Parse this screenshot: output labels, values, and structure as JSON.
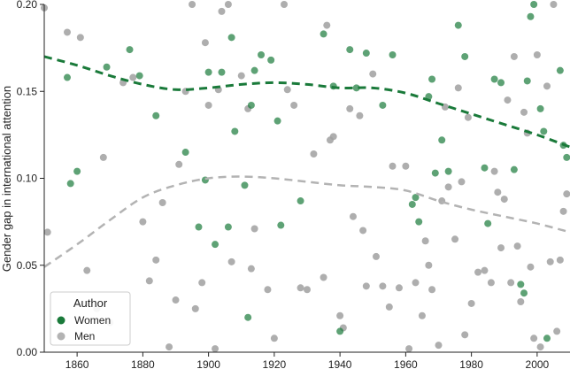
{
  "chart_data": {
    "type": "scatter",
    "title": "",
    "xlabel": "",
    "ylabel": "Gender gap in international attention",
    "xlim": [
      1850,
      2010
    ],
    "ylim": [
      0,
      0.2
    ],
    "xticks": [
      1860,
      1880,
      1900,
      1920,
      1940,
      1960,
      1980,
      2000
    ],
    "yticks": [
      0.0,
      0.05,
      0.1,
      0.15,
      0.2
    ],
    "ytick_labels": [
      "0.00",
      "0.05",
      "0.10",
      "0.15",
      "0.20"
    ],
    "grid": false,
    "legend": {
      "title": "Author",
      "placement": "bottom-left"
    },
    "series": [
      {
        "name": "Women",
        "color": "#1a7a3a",
        "points": [
          [
            1857,
            0.158
          ],
          [
            1858,
            0.097
          ],
          [
            1860,
            0.104
          ],
          [
            1869,
            0.164
          ],
          [
            1876,
            0.174
          ],
          [
            1879,
            0.159
          ],
          [
            1884,
            0.136
          ],
          [
            1893,
            0.115
          ],
          [
            1897,
            0.072
          ],
          [
            1899,
            0.099
          ],
          [
            1900,
            0.161
          ],
          [
            1902,
            0.062
          ],
          [
            1904,
            0.161
          ],
          [
            1906,
            0.072
          ],
          [
            1907,
            0.181
          ],
          [
            1908,
            0.127
          ],
          [
            1911,
            0.096
          ],
          [
            1912,
            0.02
          ],
          [
            1913,
            0.142
          ],
          [
            1914,
            0.162
          ],
          [
            1916,
            0.171
          ],
          [
            1919,
            0.168
          ],
          [
            1921,
            0.133
          ],
          [
            1922,
            0.073
          ],
          [
            1928,
            0.087
          ],
          [
            1935,
            0.183
          ],
          [
            1938,
            0.153
          ],
          [
            1940,
            0.012
          ],
          [
            1943,
            0.174
          ],
          [
            1945,
            0.152
          ],
          [
            1948,
            0.172
          ],
          [
            1953,
            0.142
          ],
          [
            1956,
            0.171
          ],
          [
            1962,
            0.085
          ],
          [
            1963,
            0.089
          ],
          [
            1964,
            0.075
          ],
          [
            1967,
            0.147
          ],
          [
            1968,
            0.157
          ],
          [
            1969,
            0.103
          ],
          [
            1971,
            0.122
          ],
          [
            1973,
            0.104
          ],
          [
            1976,
            0.188
          ],
          [
            1978,
            0.17
          ],
          [
            1984,
            0.106
          ],
          [
            1985,
            0.074
          ],
          [
            1987,
            0.157
          ],
          [
            1989,
            0.155
          ],
          [
            1993,
            0.105
          ],
          [
            1995,
            0.039
          ],
          [
            1996,
            0.034
          ],
          [
            1997,
            0.156
          ],
          [
            1998,
            0.193
          ],
          [
            1999,
            0.2
          ],
          [
            2001,
            0.14
          ],
          [
            2002,
            0.127
          ],
          [
            2003,
            0.008
          ],
          [
            2007,
            0.162
          ],
          [
            2008,
            0.119
          ],
          [
            2009,
            0.112
          ]
        ]
      },
      {
        "name": "Men",
        "color": "#a0a0a0",
        "points": [
          [
            1849,
            0.198
          ],
          [
            1851,
            0.069
          ],
          [
            1857,
            0.184
          ],
          [
            1861,
            0.181
          ],
          [
            1863,
            0.047
          ],
          [
            1866,
            0.025
          ],
          [
            1868,
            0.112
          ],
          [
            1870,
            0.017
          ],
          [
            1874,
            0.155
          ],
          [
            1877,
            0.158
          ],
          [
            1880,
            0.075
          ],
          [
            1882,
            0.041
          ],
          [
            1884,
            0.053
          ],
          [
            1886,
            0.086
          ],
          [
            1888,
            0.003
          ],
          [
            1890,
            0.03
          ],
          [
            1891,
            0.108
          ],
          [
            1893,
            0.15
          ],
          [
            1895,
            0.2
          ],
          [
            1896,
            0.025
          ],
          [
            1898,
            0.04
          ],
          [
            1899,
            0.178
          ],
          [
            1900,
            0.142
          ],
          [
            1902,
            0.002
          ],
          [
            1903,
            0.151
          ],
          [
            1904,
            0.196
          ],
          [
            1906,
            0.2
          ],
          [
            1907,
            0.052
          ],
          [
            1910,
            0.159
          ],
          [
            1912,
            0.14
          ],
          [
            1913,
            0.048
          ],
          [
            1914,
            0.071
          ],
          [
            1918,
            0.036
          ],
          [
            1920,
            0.008
          ],
          [
            1923,
            0.2
          ],
          [
            1924,
            0.151
          ],
          [
            1926,
            0.142
          ],
          [
            1928,
            0.037
          ],
          [
            1930,
            0.036
          ],
          [
            1932,
            0.114
          ],
          [
            1935,
            0.043
          ],
          [
            1936,
            0.188
          ],
          [
            1937,
            0.122
          ],
          [
            1938,
            0.124
          ],
          [
            1940,
            0.021
          ],
          [
            1941,
            0.014
          ],
          [
            1943,
            0.14
          ],
          [
            1944,
            0.078
          ],
          [
            1946,
            0.136
          ],
          [
            1947,
            0.07
          ],
          [
            1948,
            0.038
          ],
          [
            1950,
            0.16
          ],
          [
            1951,
            0.055
          ],
          [
            1953,
            0.038
          ],
          [
            1955,
            0.026
          ],
          [
            1956,
            0.107
          ],
          [
            1958,
            0.037
          ],
          [
            1960,
            0.107
          ],
          [
            1961,
            0.002
          ],
          [
            1963,
            0.04
          ],
          [
            1965,
            0.021
          ],
          [
            1966,
            0.064
          ],
          [
            1967,
            0.05
          ],
          [
            1968,
            0.036
          ],
          [
            1970,
            0.004
          ],
          [
            1971,
            0.087
          ],
          [
            1972,
            0.141
          ],
          [
            1973,
            0.095
          ],
          [
            1975,
            0.065
          ],
          [
            1976,
            0.152
          ],
          [
            1977,
            0.098
          ],
          [
            1978,
            0.01
          ],
          [
            1979,
            0.135
          ],
          [
            1980,
            0.028
          ],
          [
            1982,
            0.046
          ],
          [
            1984,
            0.047
          ],
          [
            1986,
            0.04
          ],
          [
            1987,
            0.104
          ],
          [
            1988,
            0.092
          ],
          [
            1989,
            0.06
          ],
          [
            1990,
            0.088
          ],
          [
            1991,
            0.145
          ],
          [
            1992,
            0.04
          ],
          [
            1993,
            0.17
          ],
          [
            1994,
            0.061
          ],
          [
            1995,
            0.029
          ],
          [
            1996,
            0.138
          ],
          [
            1997,
            0.126
          ],
          [
            1998,
            0.049
          ],
          [
            1999,
            0.008
          ],
          [
            2000,
            0.171
          ],
          [
            2001,
            0.003
          ],
          [
            2003,
            0.153
          ],
          [
            2004,
            0.052
          ],
          [
            2005,
            0.2
          ],
          [
            2006,
            0.012
          ],
          [
            2007,
            0.053
          ],
          [
            2008,
            0.081
          ],
          [
            2009,
            0.091
          ]
        ]
      }
    ],
    "trend_lines": [
      {
        "name": "Women",
        "color": "#1a7a3a",
        "points": [
          [
            1850,
            0.17
          ],
          [
            1860,
            0.165
          ],
          [
            1870,
            0.159
          ],
          [
            1880,
            0.154
          ],
          [
            1890,
            0.151
          ],
          [
            1900,
            0.152
          ],
          [
            1910,
            0.154
          ],
          [
            1920,
            0.155
          ],
          [
            1930,
            0.154
          ],
          [
            1940,
            0.152
          ],
          [
            1950,
            0.152
          ],
          [
            1960,
            0.149
          ],
          [
            1970,
            0.143
          ],
          [
            1980,
            0.137
          ],
          [
            1990,
            0.131
          ],
          [
            2000,
            0.125
          ],
          [
            2010,
            0.118
          ]
        ]
      },
      {
        "name": "Men",
        "color": "#b3b3b3",
        "points": [
          [
            1850,
            0.049
          ],
          [
            1860,
            0.062
          ],
          [
            1870,
            0.076
          ],
          [
            1880,
            0.089
          ],
          [
            1890,
            0.096
          ],
          [
            1900,
            0.1
          ],
          [
            1910,
            0.101
          ],
          [
            1920,
            0.1
          ],
          [
            1930,
            0.098
          ],
          [
            1940,
            0.096
          ],
          [
            1950,
            0.095
          ],
          [
            1960,
            0.093
          ],
          [
            1970,
            0.087
          ],
          [
            1980,
            0.082
          ],
          [
            1990,
            0.078
          ],
          [
            2000,
            0.074
          ],
          [
            2010,
            0.069
          ]
        ]
      }
    ]
  }
}
